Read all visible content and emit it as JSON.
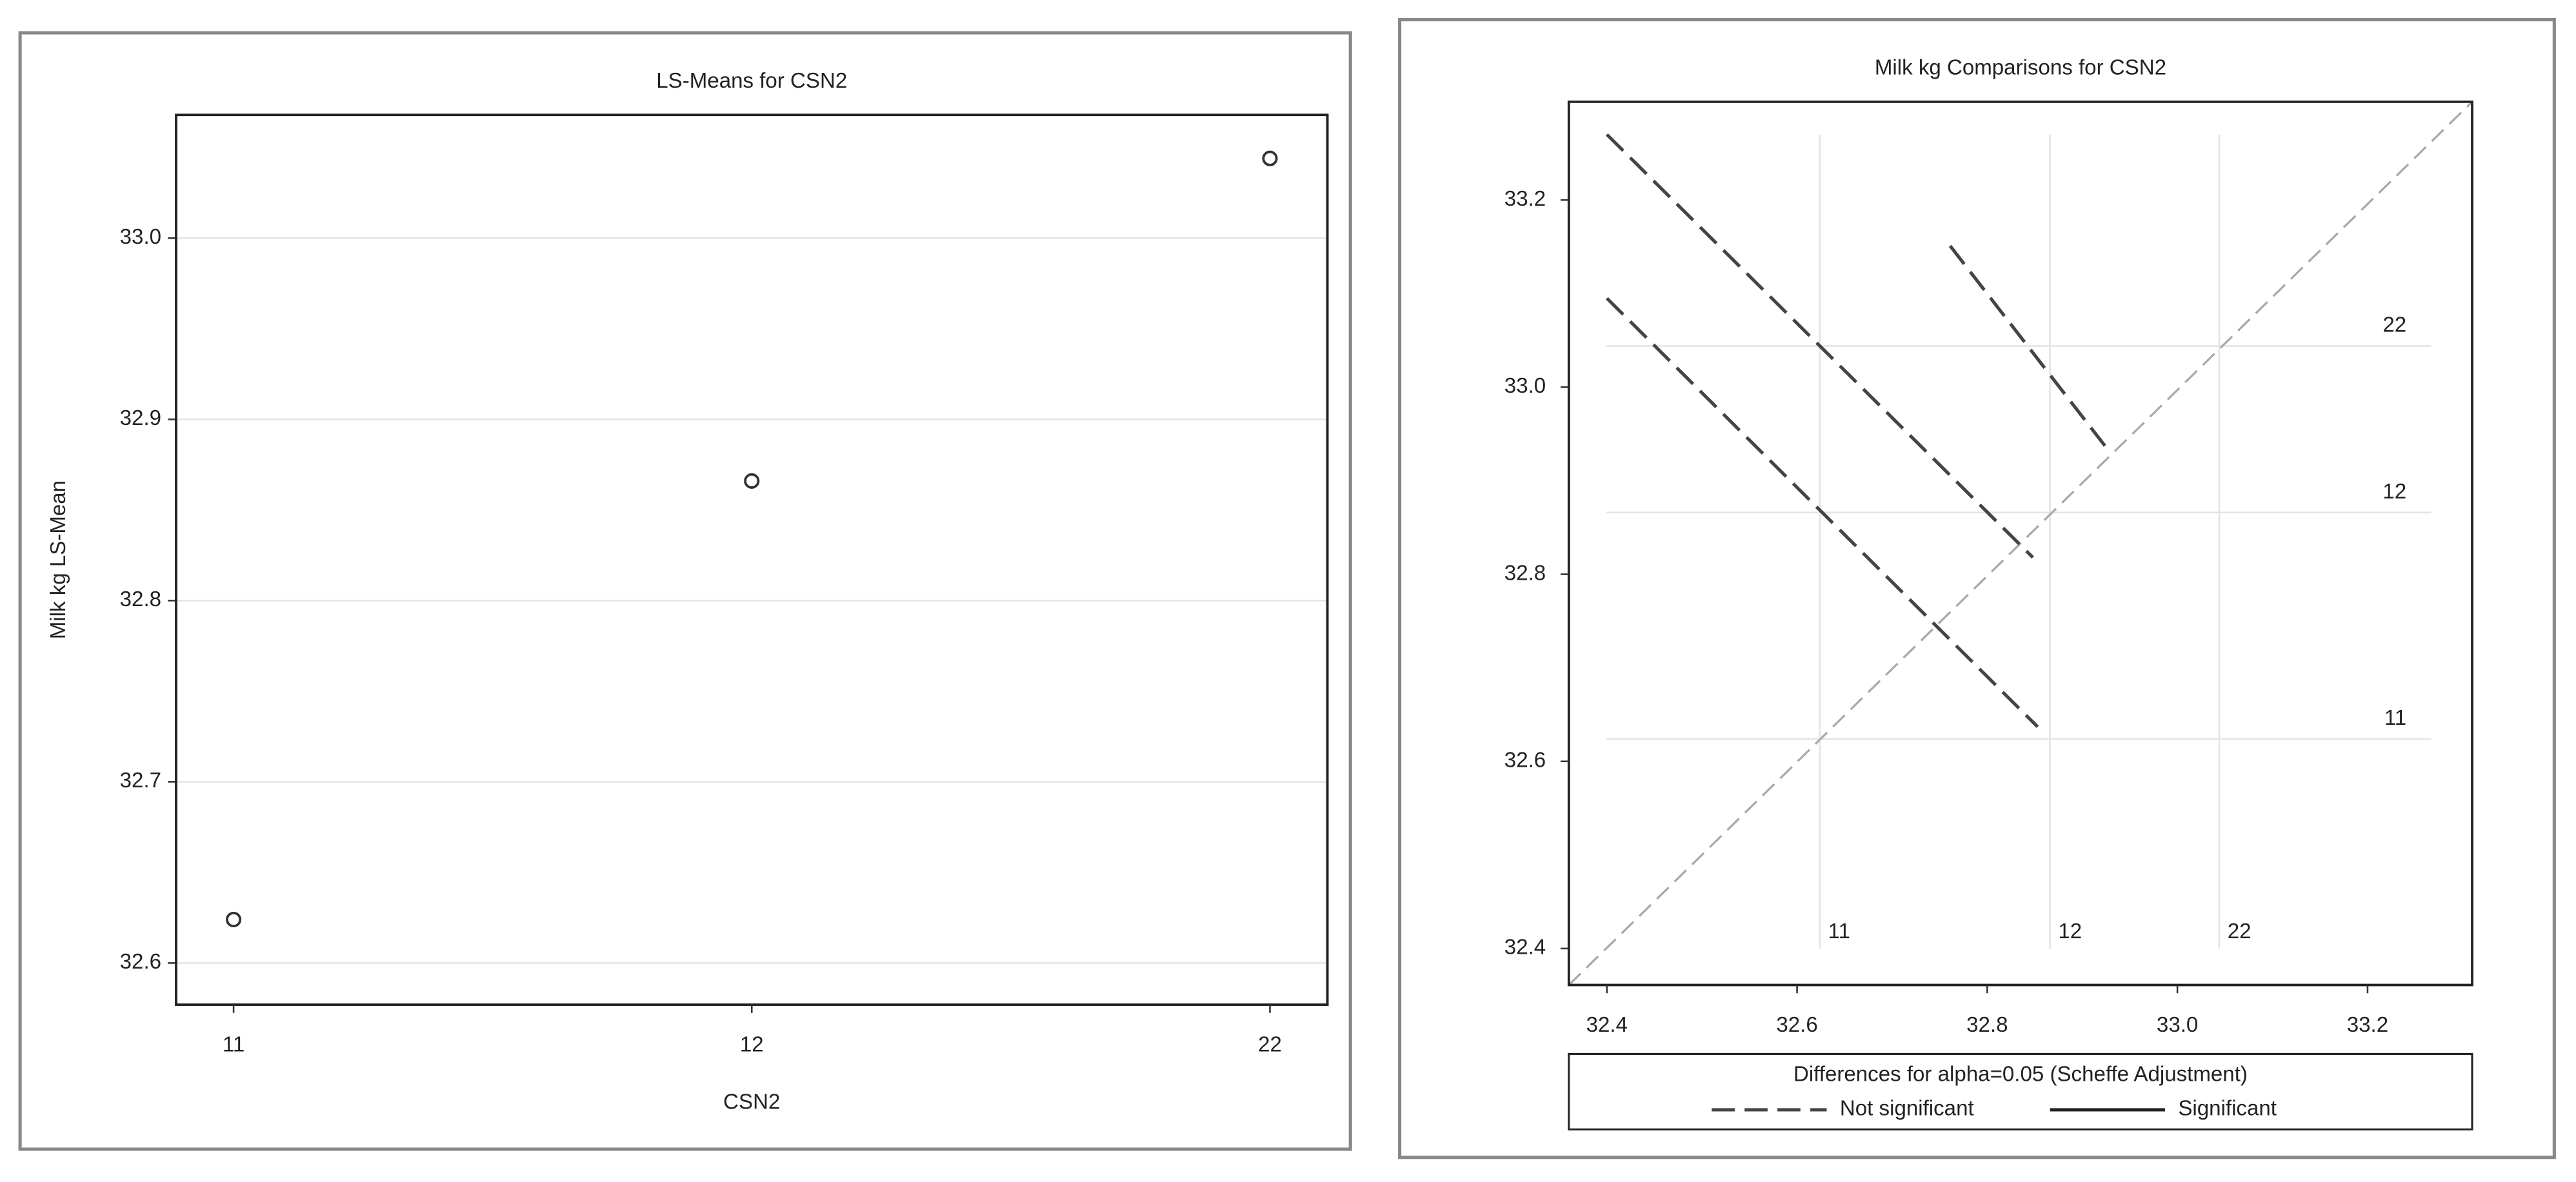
{
  "chart_data": [
    {
      "type": "scatter",
      "title": "LS-Means for CSN2",
      "xlabel": "CSN2",
      "ylabel": "Milk kg LS-Mean",
      "categories": [
        "11",
        "12",
        "22"
      ],
      "values": [
        32.624,
        32.866,
        33.044
      ],
      "color": "#333333",
      "ylim": [
        32.577,
        33.068
      ],
      "yticks": [
        32.6,
        32.7,
        32.8,
        32.9,
        {
          "value": 33.0,
          "label": "33.0"
        }
      ],
      "grid": true
    },
    {
      "type": "diffogram",
      "title": "Milk kg Comparisons for CSN2",
      "legend_title": "Differences for alpha=0.05 (Scheffe Adjustment)",
      "xlim": [
        32.36,
        33.31
      ],
      "ylim": [
        32.361,
        33.305
      ],
      "xticks": [
        32.4,
        32.6,
        32.8,
        {
          "value": 33.0,
          "label": "33.0"
        },
        33.2
      ],
      "yticks": [
        32.4,
        32.6,
        32.8,
        {
          "value": 33.0,
          "label": "33.0"
        },
        33.2
      ],
      "levels": {
        "labels": [
          "11",
          "12",
          "22"
        ],
        "values": [
          32.624,
          32.866,
          33.044
        ]
      },
      "series": [
        {
          "name": "Not significant",
          "color": "#444444",
          "dashed": true,
          "segments": [
            {
              "x": [
                32.4,
                32.853
              ],
              "y": [
                33.095,
                32.637
              ]
            },
            {
              "x": [
                32.4,
                32.848
              ],
              "y": [
                33.27,
                32.818
              ]
            },
            {
              "x": [
                32.761,
                32.924
              ],
              "y": [
                33.151,
                32.937
              ]
            }
          ]
        },
        {
          "name": "Significant",
          "color": "#222222",
          "dashed": false,
          "segments": []
        }
      ]
    }
  ]
}
